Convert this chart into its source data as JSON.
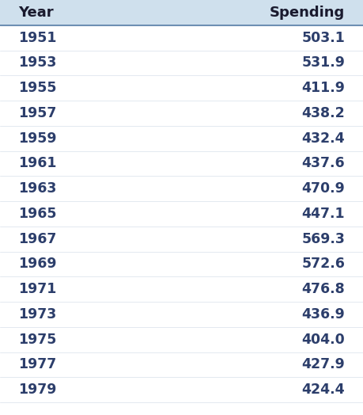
{
  "headers": [
    "Year",
    "Spending"
  ],
  "rows": [
    [
      "1951",
      "503.1"
    ],
    [
      "1953",
      "531.9"
    ],
    [
      "1955",
      "411.9"
    ],
    [
      "1957",
      "438.2"
    ],
    [
      "1959",
      "432.4"
    ],
    [
      "1961",
      "437.6"
    ],
    [
      "1963",
      "470.9"
    ],
    [
      "1965",
      "447.1"
    ],
    [
      "1967",
      "569.3"
    ],
    [
      "1969",
      "572.6"
    ],
    [
      "1971",
      "476.8"
    ],
    [
      "1973",
      "436.9"
    ],
    [
      "1975",
      "404.0"
    ],
    [
      "1977",
      "427.9"
    ],
    [
      "1979",
      "424.4"
    ]
  ],
  "header_bg_color": "#cfe0ed",
  "header_text_color": "#1a1a2e",
  "row_text_color": "#2c3e6b",
  "bg_color": "#ffffff",
  "line_color": "#5a7fa8",
  "header_font_size": 13,
  "row_font_size": 12.5,
  "fig_width": 4.59,
  "fig_height": 5.24,
  "dpi": 100
}
